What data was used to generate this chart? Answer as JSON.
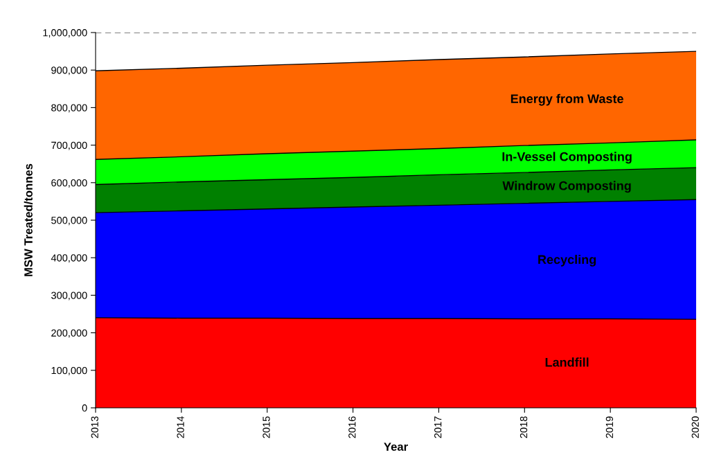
{
  "chart_data": {
    "type": "area",
    "stacked": true,
    "xlabel": "Year",
    "ylabel": "MSW Treated/tonnes",
    "x": [
      2013,
      2014,
      2015,
      2016,
      2017,
      2018,
      2019,
      2020
    ],
    "series": [
      {
        "name": "Landfill",
        "color": "#ff0000",
        "values": [
          240000,
          239000,
          239000,
          238000,
          238000,
          237000,
          237000,
          236000
        ]
      },
      {
        "name": "Recycling",
        "color": "#0000ff",
        "values": [
          280000,
          286000,
          291000,
          297000,
          302000,
          308000,
          313000,
          319000
        ]
      },
      {
        "name": "Windrow Composting",
        "color": "#008000",
        "values": [
          75000,
          77000,
          78000,
          79000,
          81000,
          82000,
          84000,
          85000
        ]
      },
      {
        "name": "In-Vessel Composting",
        "color": "#00ff00",
        "values": [
          67000,
          67000,
          69000,
          70000,
          70000,
          72000,
          72000,
          74000
        ]
      },
      {
        "name": "Energy from Waste",
        "color": "#ff6600",
        "values": [
          236000,
          236000,
          236000,
          236000,
          237000,
          236000,
          237000,
          236000
        ]
      }
    ],
    "xlim": [
      2013,
      2020
    ],
    "xticks": [
      2013,
      2014,
      2015,
      2016,
      2017,
      2018,
      2019,
      2020
    ],
    "ylim": [
      0,
      1000000
    ],
    "yticks": [
      0,
      {
        "value": 100000,
        "label": "100,000"
      },
      {
        "value": 200000,
        "label": "200,000"
      },
      {
        "value": 300000,
        "label": "300,000"
      },
      {
        "value": 400000,
        "label": "400,000"
      },
      {
        "value": 500000,
        "label": "500,000"
      },
      {
        "value": 600000,
        "label": "600,000"
      },
      {
        "value": 700000,
        "label": "700,000"
      },
      {
        "value": 800000,
        "label": "800,000"
      },
      {
        "value": 900000,
        "label": "900,000"
      },
      {
        "value": 1000000,
        "label": "1,000,000"
      }
    ],
    "ref_lines": [
      {
        "axis": "y",
        "value": 1000000,
        "color": "#555555",
        "line_style": "dashed"
      }
    ],
    "grid": false,
    "legend": false
  }
}
